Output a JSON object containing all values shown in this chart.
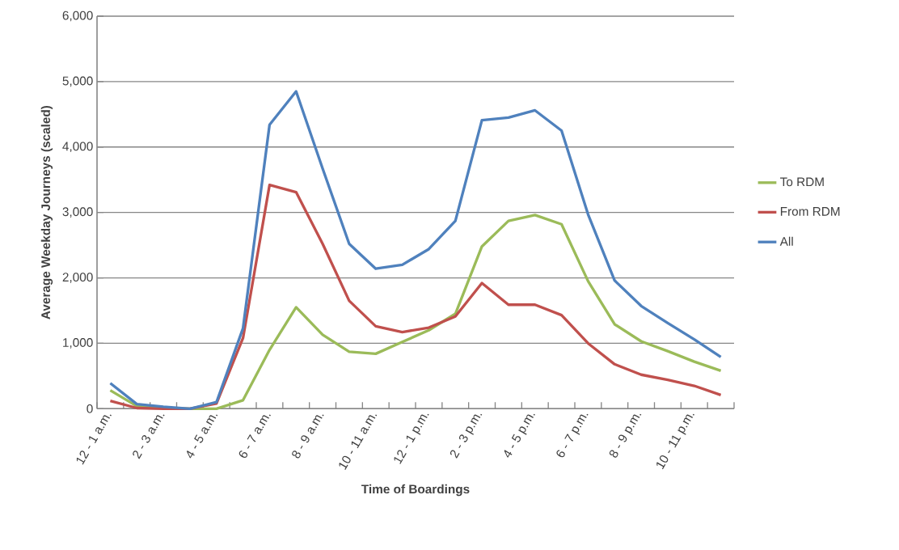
{
  "chart_data": {
    "type": "line",
    "xlabel": "Time of Boardings",
    "ylabel": "Average Weekday Journeys (scaled)",
    "categories": [
      "12 - 1 a.m.",
      null,
      "2 - 3 a.m.",
      null,
      "4 - 5 a.m.",
      null,
      "6 - 7 a.m.",
      null,
      "8 - 9 a.m.",
      null,
      "10 - 11 a.m.",
      null,
      "12 - 1 p.m.",
      null,
      "2 - 3 p.m.",
      null,
      "4 - 5 p.m.",
      null,
      "6 - 7 p.m.",
      null,
      "8 - 9 p.m.",
      null,
      "10 - 11 p.m.",
      null
    ],
    "series": [
      {
        "name": "To RDM",
        "color": "#9bbb59",
        "values": [
          280,
          40,
          10,
          0,
          0,
          130,
          900,
          1550,
          1130,
          870,
          840,
          1020,
          1200,
          1450,
          2480,
          2870,
          2960,
          2820,
          1950,
          1290,
          1030,
          880,
          720,
          580
        ]
      },
      {
        "name": "From RDM",
        "color": "#c0504d",
        "values": [
          120,
          10,
          0,
          0,
          80,
          1080,
          3420,
          3310,
          2520,
          1650,
          1260,
          1170,
          1240,
          1410,
          1920,
          1590,
          1590,
          1430,
          1000,
          680,
          520,
          440,
          350,
          210
        ]
      },
      {
        "name": "All",
        "color": "#4f81bd",
        "values": [
          390,
          70,
          30,
          0,
          100,
          1230,
          4340,
          4850,
          3670,
          2520,
          2140,
          2200,
          2440,
          2870,
          4410,
          4450,
          4560,
          4250,
          2970,
          1960,
          1570,
          1310,
          1060,
          790
        ]
      }
    ],
    "ylim": [
      0,
      6000
    ],
    "yticks": [
      0,
      {
        "value": 1000,
        "label": "1,000"
      },
      {
        "value": 2000,
        "label": "2,000"
      },
      {
        "value": 3000,
        "label": "3,000"
      },
      {
        "value": 4000,
        "label": "4,000"
      },
      {
        "value": 5000,
        "label": "5,000"
      },
      {
        "value": 6000,
        "label": "6,000"
      }
    ],
    "grid": "y",
    "legend": "right",
    "marker": "none",
    "line_style": "solid"
  }
}
